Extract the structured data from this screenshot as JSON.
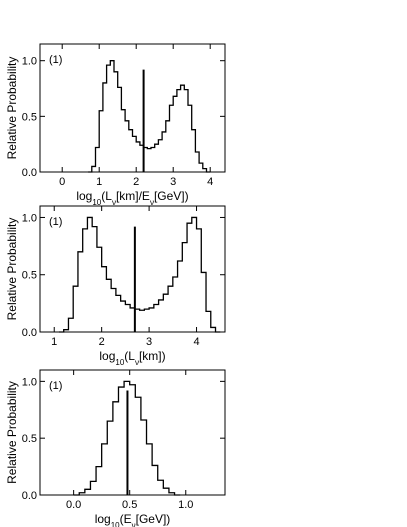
{
  "chart_data": [
    {
      "type": "histogram",
      "panel_label": "(1)",
      "xlabel": {
        "prefix": "log",
        "base": "10",
        "mid1": "(L",
        "nu1": "ν",
        "mid2": "[km]/E",
        "nu2": "ν",
        "suffix": "[GeV])"
      },
      "ylabel": "Relative Probability",
      "xlim": [
        -0.6,
        4.4
      ],
      "ylim": [
        0.0,
        1.15
      ],
      "xticks": [
        0,
        1,
        2,
        3,
        4
      ],
      "yticks": [
        0.0,
        0.5,
        1.0
      ],
      "ytick_labels": [
        "0.0",
        "0.5",
        "1.0"
      ],
      "bin_width": 0.1,
      "bin_start": 0.7,
      "values": [
        0.0,
        0.05,
        0.22,
        0.55,
        0.8,
        0.96,
        1.0,
        0.9,
        0.76,
        0.56,
        0.46,
        0.38,
        0.32,
        0.27,
        0.24,
        0.22,
        0.21,
        0.22,
        0.25,
        0.29,
        0.36,
        0.46,
        0.6,
        0.68,
        0.74,
        0.78,
        0.74,
        0.6,
        0.38,
        0.18,
        0.08,
        0.03,
        0.0
      ],
      "marker_x": 2.2,
      "marker_y": 0.92
    },
    {
      "type": "histogram",
      "panel_label": "(1)",
      "xlabel": {
        "prefix": "log",
        "base": "10",
        "mid1": "(L",
        "nu1": "ν",
        "mid2": "[km])",
        "nu2": "",
        "suffix": ""
      },
      "ylabel": "Relative Probability",
      "xlim": [
        0.7,
        4.6
      ],
      "ylim": [
        0.0,
        1.1
      ],
      "xticks": [
        1,
        2,
        3,
        4
      ],
      "yticks": [
        0.0,
        0.5,
        1.0
      ],
      "ytick_labels": [
        "0.0",
        "0.5",
        "1.0"
      ],
      "bin_width": 0.1,
      "bin_start": 1.1,
      "values": [
        0.0,
        0.02,
        0.12,
        0.4,
        0.7,
        0.9,
        1.0,
        0.92,
        0.74,
        0.57,
        0.46,
        0.38,
        0.32,
        0.27,
        0.24,
        0.21,
        0.2,
        0.19,
        0.2,
        0.21,
        0.24,
        0.28,
        0.33,
        0.4,
        0.48,
        0.62,
        0.78,
        0.95,
        1.0,
        0.9,
        0.52,
        0.18,
        0.04,
        0.0
      ],
      "marker_x": 2.7,
      "marker_y": 0.92
    },
    {
      "type": "histogram",
      "panel_label": "(1)",
      "xlabel": {
        "prefix": "log",
        "base": "10",
        "mid1": "(E",
        "nu1": "ν",
        "mid2": "[GeV])",
        "nu2": "",
        "suffix": ""
      },
      "ylabel": "Relative Probability",
      "xlim": [
        -0.3,
        1.35
      ],
      "ylim": [
        0.0,
        1.1
      ],
      "xticks": [
        0.0,
        0.5,
        1.0
      ],
      "xtick_labels": [
        "0.0",
        "0.5",
        "1.0"
      ],
      "yticks": [
        0.0,
        0.5,
        1.0
      ],
      "ytick_labels": [
        "0.0",
        "0.5",
        "1.0"
      ],
      "bin_width": 0.05,
      "bin_start": 0.0,
      "values": [
        0.0,
        0.02,
        0.05,
        0.12,
        0.25,
        0.45,
        0.65,
        0.82,
        0.95,
        1.0,
        0.97,
        0.86,
        0.66,
        0.45,
        0.26,
        0.13,
        0.06,
        0.02,
        0.0
      ],
      "marker_x": 0.48,
      "marker_y": 0.92
    }
  ]
}
